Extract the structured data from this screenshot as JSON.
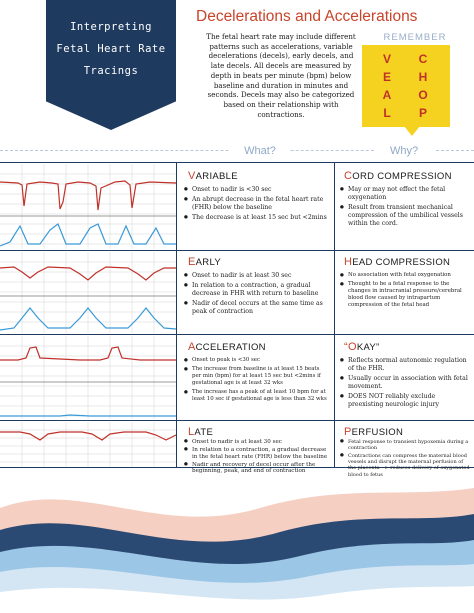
{
  "banner": {
    "title": "Interpreting\nFetal Heart Rate\nTracings"
  },
  "header": {
    "title": "Decelerations and Accelerations",
    "intro": "The fetal heart rate may include different patterns such as accelerations, variable decelerations (decels), early decels, and late decels. All decels are measured by depth in beats per minute (bpm) below baseline and duration in minutes and seconds. Decels may also be categorized based on their relationship with contractions."
  },
  "remember": {
    "label": "REMEMBER",
    "left": [
      "V",
      "E",
      "A",
      "L"
    ],
    "right": [
      "C",
      "H",
      "O",
      "P"
    ]
  },
  "columns": {
    "what": "What?",
    "why": "Why?"
  },
  "rows": [
    {
      "what_cap": "V",
      "what_rest": "ARIABLE",
      "what_items": [
        "Onset to nadir is <30 sec",
        "An abrupt decrease in the fetal heart rate (FHR) below the baseline",
        "The decrease is at least 15 sec but <2mins"
      ],
      "why_cap": "C",
      "why_rest": "ORD COMPRESSION",
      "why_items": [
        "May or may not effect the fetal oxygenation",
        "Result from transient mechanical compression of the umbilical vessels within the cord."
      ]
    },
    {
      "what_cap": "E",
      "what_rest": "ARLY",
      "what_items": [
        "Onset to nadir is at least 30 sec",
        "In relation to a contraction, a gradual decrease in FHR with return to baseline",
        "Nadir of decel occurs at the same time as peak of contraction"
      ],
      "why_cap": "H",
      "why_rest": "EAD COMPRESSION",
      "why_items": [
        "No association with fetal oxygenation",
        "Thought to be a fetal response to the changes in intracranial pressure/cerebral blood flow caused by intrapartum compression of the fetal head"
      ]
    },
    {
      "what_cap": "A",
      "what_rest": "CCELERATION",
      "what_items": [
        "Onset to peak is <30 sec",
        "The increase from baseline is at least 15 beats per min (bpm) for at least 15 sec but <2mins if gestational age is at least 32 wks",
        "The increase has a peak of at least 10 bpm for at least 10 sec if gestational age is less than 32 wks"
      ],
      "why_cap": "“O",
      "why_rest": "KAY”",
      "why_items": [
        "Reflects normal autonomic regulation of the FHR.",
        "Usually occur in association with fetal movement.",
        "DOES NOT reliably exclude preexisting neurologic injury"
      ]
    },
    {
      "what_cap": "L",
      "what_rest": "ATE",
      "what_items": [
        "Onset to nadir is at least 30 sec",
        "In relation to a contraction, a gradual decrease in the fetal heart rate (FHR) below the baseline",
        "Nadir and recovery of decel occur after the beginning, peak, and end of contraction"
      ],
      "why_cap": "P",
      "why_rest": "ERFUSION",
      "why_items": [
        "Fetal response to transient hypoxemia during a contraction",
        "Contractions can compress the maternal blood vessels and disrupt the maternal perfusion of the placenta --> reduces delivery of oxygenated blood to fetus"
      ]
    }
  ],
  "colors": {
    "navy": "#1f3a5f",
    "accent": "#c8442a",
    "note": "#f4d21f",
    "trace_fhr": "#c0312a",
    "trace_uc": "#3a9ad9"
  }
}
